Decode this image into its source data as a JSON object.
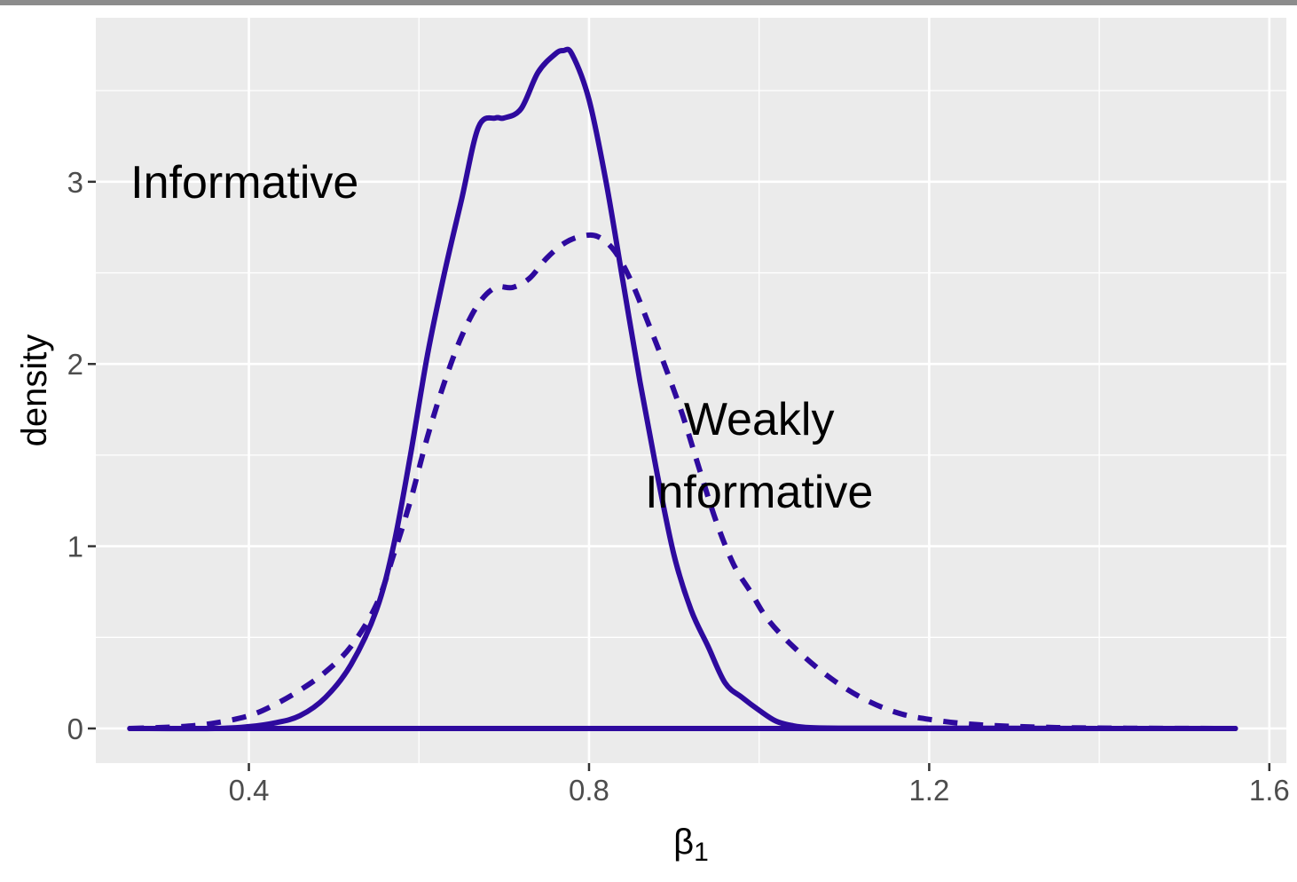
{
  "chart_data": {
    "type": "line",
    "xlabel": "β",
    "xlabel_sub": "1",
    "ylabel": "density",
    "xlim": [
      0.22,
      1.62
    ],
    "ylim": [
      -0.19,
      3.9
    ],
    "x_ticks": [
      0.4,
      0.8,
      1.2,
      1.6
    ],
    "x_tick_labels": [
      "0.4",
      "0.8",
      "1.2",
      "1.6"
    ],
    "y_ticks": [
      0,
      1,
      2,
      3
    ],
    "y_tick_labels": [
      "0",
      "1",
      "2",
      "3"
    ],
    "grid": true,
    "line_color": "#2e0a9e",
    "panel_color": "#ebebeb",
    "annotations": [
      {
        "text": "Informative",
        "x": 0.395,
        "y": 3.0
      },
      {
        "text": "Weakly",
        "x": 1.0,
        "y": 1.7
      },
      {
        "text": "Informative",
        "x": 1.0,
        "y": 1.3
      }
    ],
    "series": [
      {
        "style": "solid",
        "x": [
          0.26,
          0.36,
          0.4,
          0.43,
          0.46,
          0.49,
          0.52,
          0.55,
          0.57,
          0.59,
          0.61,
          0.63,
          0.65,
          0.67,
          0.69,
          0.7,
          0.72,
          0.74,
          0.76,
          0.77,
          0.78,
          0.8,
          0.82,
          0.84,
          0.86,
          0.88,
          0.9,
          0.92,
          0.94,
          0.96,
          0.98,
          1.0,
          1.02,
          1.04,
          1.06,
          1.1,
          1.2,
          1.4,
          1.56
        ],
        "y": [
          0.0,
          0.0,
          0.01,
          0.03,
          0.07,
          0.17,
          0.35,
          0.65,
          1.0,
          1.5,
          2.05,
          2.5,
          2.9,
          3.3,
          3.35,
          3.35,
          3.4,
          3.6,
          3.7,
          3.72,
          3.7,
          3.45,
          3.0,
          2.45,
          1.9,
          1.4,
          0.95,
          0.65,
          0.45,
          0.25,
          0.17,
          0.1,
          0.04,
          0.015,
          0.005,
          0.002,
          0.002,
          0.0,
          0.0
        ]
      },
      {
        "style": "dashed",
        "x": [
          0.26,
          0.32,
          0.36,
          0.4,
          0.43,
          0.46,
          0.49,
          0.52,
          0.55,
          0.57,
          0.59,
          0.61,
          0.63,
          0.65,
          0.67,
          0.69,
          0.71,
          0.73,
          0.75,
          0.77,
          0.79,
          0.81,
          0.83,
          0.85,
          0.87,
          0.89,
          0.91,
          0.93,
          0.95,
          0.97,
          0.99,
          1.01,
          1.04,
          1.08,
          1.12,
          1.16,
          1.2,
          1.26,
          1.35,
          1.45,
          1.56
        ],
        "y": [
          0.0,
          0.01,
          0.03,
          0.07,
          0.13,
          0.21,
          0.31,
          0.45,
          0.68,
          0.95,
          1.25,
          1.6,
          1.9,
          2.15,
          2.33,
          2.42,
          2.42,
          2.47,
          2.58,
          2.66,
          2.7,
          2.7,
          2.62,
          2.45,
          2.22,
          1.98,
          1.72,
          1.42,
          1.13,
          0.9,
          0.75,
          0.6,
          0.45,
          0.29,
          0.17,
          0.09,
          0.05,
          0.02,
          0.005,
          0.001,
          0.0
        ]
      }
    ]
  }
}
